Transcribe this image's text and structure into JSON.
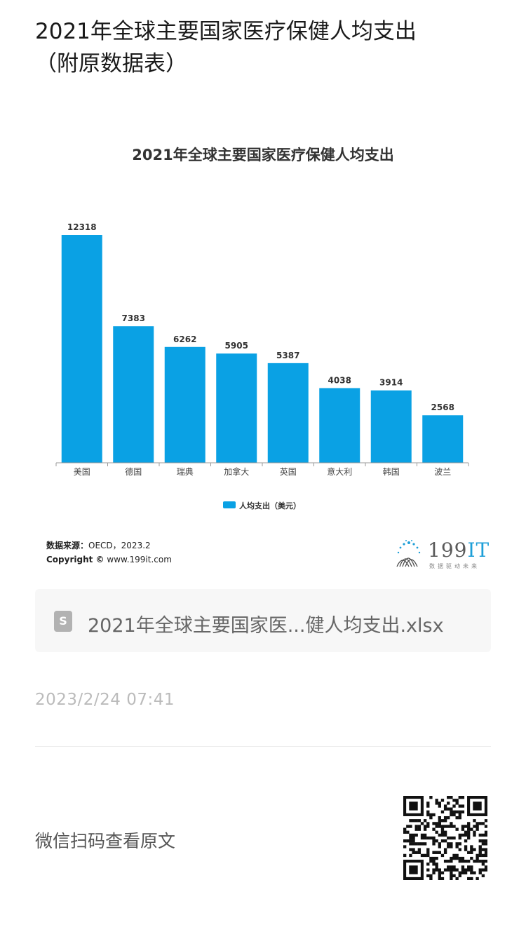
{
  "article": {
    "title_line1": "2021年全球主要国家医疗保健人均支出",
    "title_line2": "（附原数据表）"
  },
  "chart_data": {
    "type": "bar",
    "title": "2021年全球主要国家医疗保健人均支出",
    "categories": [
      "美国",
      "德国",
      "瑞典",
      "加拿大",
      "英国",
      "意大利",
      "韩国",
      "波兰"
    ],
    "series": [
      {
        "name": "人均支出（美元）",
        "values": [
          12318,
          7383,
          6262,
          5905,
          5387,
          4038,
          3914,
          2568
        ]
      }
    ],
    "bar_color": "#0aa1e4",
    "ylim": [
      0,
      12318
    ],
    "grid": false,
    "legend_position": "bottom-center",
    "data_labels": true
  },
  "source": {
    "label": "数据来源：",
    "value": "OECD，2023.2",
    "copyright_label": "Copyright ©",
    "copyright_value": "www.199it.com"
  },
  "logo": {
    "name": "199",
    "accent": "IT",
    "slogan": "数据驱动未来"
  },
  "attachment": {
    "icon": "spreadsheet-file-icon",
    "icon_letter": "S",
    "filename": "2021年全球主要国家医...健人均支出.xlsx"
  },
  "meta": {
    "timestamp": "2023/2/24 07:41"
  },
  "footer": {
    "qr_label": "微信扫码查看原文",
    "qr_icon": "qr-code-icon"
  }
}
